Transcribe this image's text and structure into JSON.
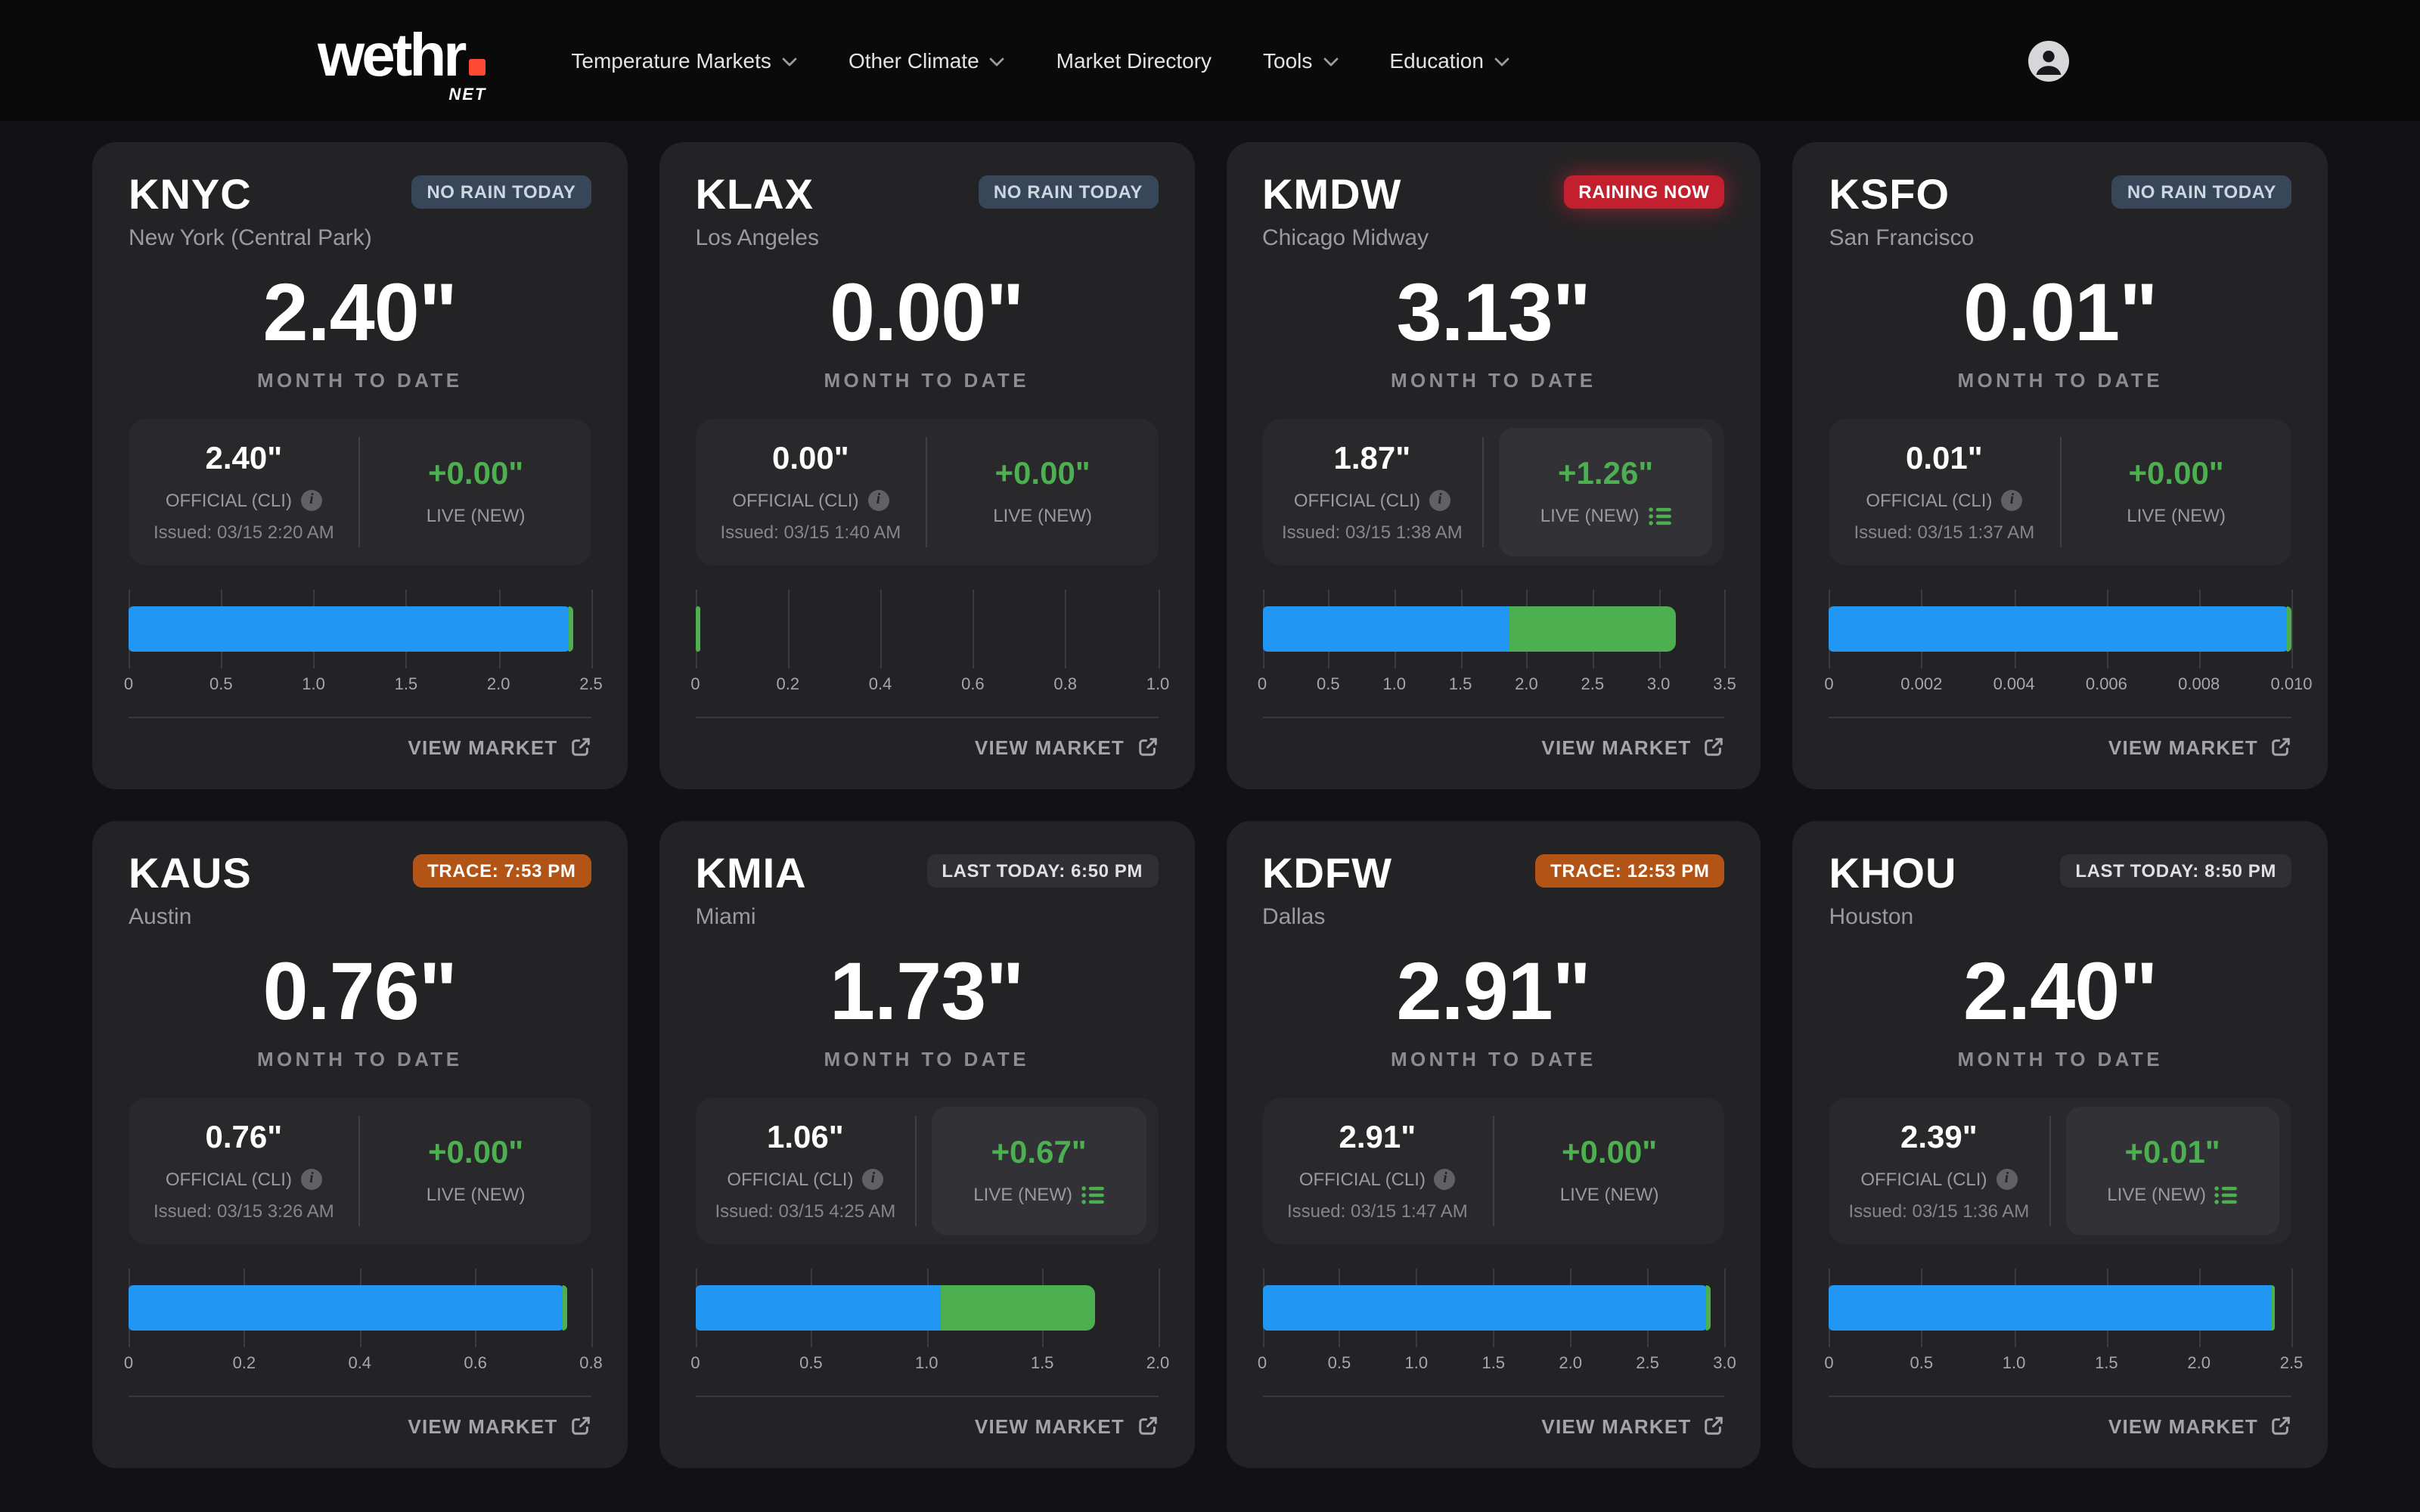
{
  "nav": {
    "brand": {
      "word": "wethr",
      "net": "NET"
    },
    "items": [
      {
        "label": "Temperature Markets",
        "chevron": true
      },
      {
        "label": "Other Climate",
        "chevron": true
      },
      {
        "label": "Market Directory",
        "chevron": false
      },
      {
        "label": "Tools",
        "chevron": true
      },
      {
        "label": "Education",
        "chevron": true
      }
    ]
  },
  "labels": {
    "official": "OFFICIAL (CLI)",
    "live": "LIVE (NEW)",
    "month_to_date": "MONTH TO DATE",
    "view_market": "VIEW MARKET",
    "info_glyph": "i"
  },
  "colors": {
    "accent_blue": "#2196f3",
    "accent_green": "#4caf50",
    "brand_dot": "#ff4a33",
    "badge_red": "#c2202e",
    "badge_orange": "#b25416",
    "badge_slate": "#38465a",
    "badge_gray": "#303033"
  },
  "cards": [
    {
      "code": "KNYC",
      "city": "New York (Central Park)",
      "badge": {
        "label": "NO RAIN TODAY",
        "type": "slate"
      },
      "mtd": "2.40\"",
      "official": {
        "value": "2.40\"",
        "issued": "Issued: 03/15 2:20 AM"
      },
      "live": {
        "value": "+0.00\"",
        "boxed": false
      },
      "chart": {
        "type": "bar",
        "max": 2.5,
        "official": 2.4,
        "live": 0,
        "ticks": [
          [
            "0",
            0
          ],
          [
            "0.5",
            0.5
          ],
          [
            "1.0",
            1.0
          ],
          [
            "1.5",
            1.5
          ],
          [
            "2.0",
            2.0
          ],
          [
            "2.5",
            2.5
          ]
        ]
      }
    },
    {
      "code": "KLAX",
      "city": "Los Angeles",
      "badge": {
        "label": "NO RAIN TODAY",
        "type": "slate"
      },
      "mtd": "0.00\"",
      "official": {
        "value": "0.00\"",
        "issued": "Issued: 03/15 1:40 AM"
      },
      "live": {
        "value": "+0.00\"",
        "boxed": false
      },
      "chart": {
        "type": "bar",
        "max": 1.0,
        "official": 0,
        "live": 0,
        "ticks": [
          [
            "0",
            0
          ],
          [
            "0.2",
            0.2
          ],
          [
            "0.4",
            0.4
          ],
          [
            "0.6",
            0.6
          ],
          [
            "0.8",
            0.8
          ],
          [
            "1.0",
            1.0
          ]
        ]
      }
    },
    {
      "code": "KMDW",
      "city": "Chicago Midway",
      "badge": {
        "label": "RAINING NOW",
        "type": "red"
      },
      "mtd": "3.13\"",
      "official": {
        "value": "1.87\"",
        "issued": "Issued: 03/15 1:38 AM"
      },
      "live": {
        "value": "+1.26\"",
        "boxed": true
      },
      "chart": {
        "type": "bar",
        "max": 3.5,
        "official": 1.87,
        "live": 1.26,
        "ticks": [
          [
            "0",
            0
          ],
          [
            "0.5",
            0.5
          ],
          [
            "1.0",
            1.0
          ],
          [
            "1.5",
            1.5
          ],
          [
            "2.0",
            2.0
          ],
          [
            "2.5",
            2.5
          ],
          [
            "3.0",
            3.0
          ],
          [
            "3.5",
            3.5
          ]
        ]
      }
    },
    {
      "code": "KSFO",
      "city": "San Francisco",
      "badge": {
        "label": "NO RAIN TODAY",
        "type": "slate"
      },
      "mtd": "0.01\"",
      "official": {
        "value": "0.01\"",
        "issued": "Issued: 03/15 1:37 AM"
      },
      "live": {
        "value": "+0.00\"",
        "boxed": false
      },
      "chart": {
        "type": "bar",
        "max": 0.01,
        "official": 0.01,
        "live": 0,
        "ticks": [
          [
            "0",
            0
          ],
          [
            "0.002",
            0.002
          ],
          [
            "0.004",
            0.004
          ],
          [
            "0.006",
            0.006
          ],
          [
            "0.008",
            0.008
          ],
          [
            "0.010",
            0.01
          ]
        ]
      }
    },
    {
      "code": "KAUS",
      "city": "Austin",
      "badge": {
        "label": "TRACE: 7:53 PM",
        "type": "orange"
      },
      "mtd": "0.76\"",
      "official": {
        "value": "0.76\"",
        "issued": "Issued: 03/15 3:26 AM"
      },
      "live": {
        "value": "+0.00\"",
        "boxed": false
      },
      "chart": {
        "type": "bar",
        "max": 0.8,
        "official": 0.76,
        "live": 0,
        "ticks": [
          [
            "0",
            0
          ],
          [
            "0.2",
            0.2
          ],
          [
            "0.4",
            0.4
          ],
          [
            "0.6",
            0.6
          ],
          [
            "0.8",
            0.8
          ]
        ]
      }
    },
    {
      "code": "KMIA",
      "city": "Miami",
      "badge": {
        "label": "LAST TODAY: 6:50 PM",
        "type": "gray"
      },
      "mtd": "1.73\"",
      "official": {
        "value": "1.06\"",
        "issued": "Issued: 03/15 4:25 AM"
      },
      "live": {
        "value": "+0.67\"",
        "boxed": true
      },
      "chart": {
        "type": "bar",
        "max": 2.0,
        "official": 1.06,
        "live": 0.67,
        "ticks": [
          [
            "0",
            0
          ],
          [
            "0.5",
            0.5
          ],
          [
            "1.0",
            1.0
          ],
          [
            "1.5",
            1.5
          ],
          [
            "2.0",
            2.0
          ]
        ]
      }
    },
    {
      "code": "KDFW",
      "city": "Dallas",
      "badge": {
        "label": "TRACE: 12:53 PM",
        "type": "orange"
      },
      "mtd": "2.91\"",
      "official": {
        "value": "2.91\"",
        "issued": "Issued: 03/15 1:47 AM"
      },
      "live": {
        "value": "+0.00\"",
        "boxed": false
      },
      "chart": {
        "type": "bar",
        "max": 3.0,
        "official": 2.91,
        "live": 0,
        "ticks": [
          [
            "0",
            0
          ],
          [
            "0.5",
            0.5
          ],
          [
            "1.0",
            1.0
          ],
          [
            "1.5",
            1.5
          ],
          [
            "2.0",
            2.0
          ],
          [
            "2.5",
            2.5
          ],
          [
            "3.0",
            3.0
          ]
        ]
      }
    },
    {
      "code": "KHOU",
      "city": "Houston",
      "badge": {
        "label": "LAST TODAY: 8:50 PM",
        "type": "gray"
      },
      "mtd": "2.40\"",
      "official": {
        "value": "2.39\"",
        "issued": "Issued: 03/15 1:36 AM"
      },
      "live": {
        "value": "+0.01\"",
        "boxed": true
      },
      "chart": {
        "type": "bar",
        "max": 2.5,
        "official": 2.39,
        "live": 0.01,
        "ticks": [
          [
            "0",
            0
          ],
          [
            "0.5",
            0.5
          ],
          [
            "1.0",
            1.0
          ],
          [
            "1.5",
            1.5
          ],
          [
            "2.0",
            2.0
          ],
          [
            "2.5",
            2.5
          ]
        ]
      }
    }
  ]
}
